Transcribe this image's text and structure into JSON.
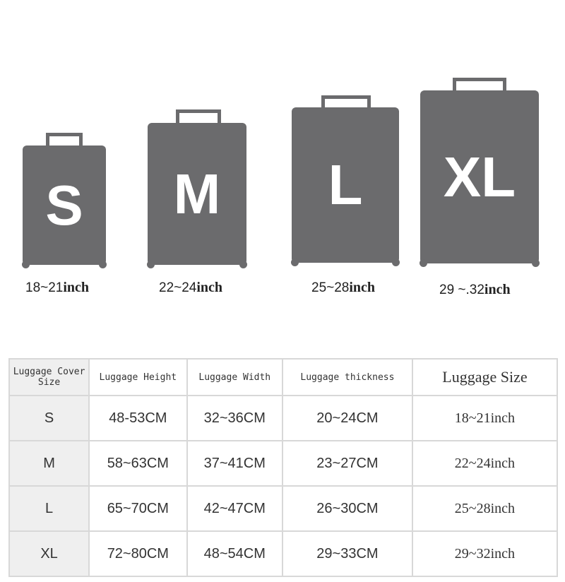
{
  "suitcases": [
    {
      "letter": "S",
      "range": "18~21",
      "unit": "inch"
    },
    {
      "letter": "M",
      "range": "22~24",
      "unit": "inch"
    },
    {
      "letter": "L",
      "range": "25~28",
      "unit": "inch"
    },
    {
      "letter": "XL",
      "range": "29 ~.32",
      "unit": "inch"
    }
  ],
  "colors": {
    "suitcase": "#6b6b6d"
  },
  "table": {
    "headers": [
      "Luggage Cover Size",
      "Luggage Height",
      "Luggage Width",
      "Luggage thickness",
      "Luggage Size"
    ],
    "rows": [
      [
        "S",
        "48-53CM",
        "32~36CM",
        "20~24CM",
        "18~21inch"
      ],
      [
        "M",
        "58~63CM",
        "37~41CM",
        "23~27CM",
        "22~24inch"
      ],
      [
        "L",
        "65~70CM",
        "42~47CM",
        "26~30CM",
        "25~28inch"
      ],
      [
        "XL",
        "72~80CM",
        "48~54CM",
        "29~33CM",
        "29~32inch"
      ]
    ]
  }
}
